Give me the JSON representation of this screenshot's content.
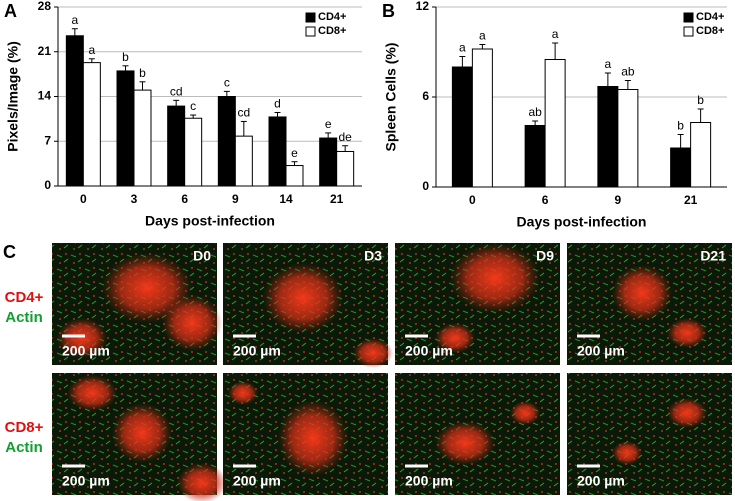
{
  "chart_data": [
    {
      "type": "bar",
      "panel": "A",
      "ylabel": "Pixels/Image (%)",
      "xlabel": "Days post-infection",
      "categories": [
        "0",
        "3",
        "6",
        "9",
        "14",
        "21"
      ],
      "ylim": [
        0,
        28
      ],
      "yticks": [
        0,
        7,
        14,
        21,
        28
      ],
      "grid": true,
      "legend": "top-right",
      "series": [
        {
          "name": "CD4+",
          "color": "#000000",
          "values": [
            23.5,
            18,
            12.5,
            14,
            10.8,
            7.5
          ],
          "errors": [
            1.1,
            0.8,
            0.9,
            0.8,
            0.7,
            0.8
          ],
          "significance": [
            "a",
            "b",
            "cd",
            "c",
            "d",
            "e"
          ]
        },
        {
          "name": "CD8+",
          "color": "#ffffff",
          "values": [
            19.3,
            15,
            10.6,
            7.8,
            3.2,
            5.4
          ],
          "errors": [
            0.6,
            1.3,
            0.5,
            2.3,
            0.6,
            0.9
          ],
          "significance": [
            "a",
            "b",
            "c",
            "cd",
            "e",
            "de"
          ]
        }
      ]
    },
    {
      "type": "bar",
      "panel": "B",
      "ylabel": "Spleen Cells (%)",
      "xlabel": "Days post-infection",
      "categories": [
        "0",
        "6",
        "9",
        "21"
      ],
      "ylim": [
        0,
        12
      ],
      "yticks": [
        0,
        6,
        12
      ],
      "grid": true,
      "legend": "top-right",
      "series": [
        {
          "name": "CD4+",
          "color": "#000000",
          "values": [
            8,
            4.1,
            6.7,
            2.6
          ],
          "errors": [
            0.7,
            0.3,
            0.9,
            0.9
          ],
          "significance": [
            "a",
            "ab",
            "a",
            "b"
          ]
        },
        {
          "name": "CD8+",
          "color": "#ffffff",
          "values": [
            9.2,
            8.5,
            6.5,
            4.3
          ],
          "errors": [
            0.3,
            1.1,
            0.6,
            0.9
          ],
          "significance": [
            "a",
            "a",
            "ab",
            "b"
          ]
        }
      ]
    }
  ],
  "panel_c": {
    "label": "C",
    "columns": [
      "D0",
      "D3",
      "D9",
      "D21"
    ],
    "rows": [
      [
        "CD4+",
        "Actin"
      ],
      [
        "CD8+",
        "Actin"
      ]
    ],
    "scale_bar": "200 µm"
  }
}
